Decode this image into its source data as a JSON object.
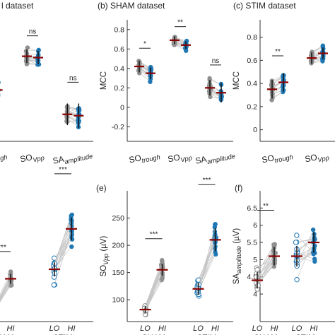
{
  "colors": {
    "gray": "#8f8f8f",
    "blue": "#1f77b4",
    "line": "#c6c6c6",
    "mean": "#8b0000",
    "axis": "#333333"
  },
  "chart_data": [
    {
      "id": "a",
      "type": "scatter",
      "title": "l dataset",
      "ylabel": "",
      "ylim": [
        0,
        0.9
      ],
      "categories": [
        "SO_trough",
        "SO_Vpp",
        "SA_amplitude"
      ],
      "category_labels": [
        {
          "main": "SO",
          "sub": "trough"
        },
        {
          "main": "SO",
          "sub": "Vpp"
        },
        {
          "main": "SA",
          "sub": "amplitude"
        }
      ],
      "significance": [
        "",
        "ns",
        "ns"
      ],
      "series": [
        {
          "values": [
            0.4,
            0.63,
            0.2
          ],
          "spread": [
            0.06,
            0.05,
            0.08
          ]
        },
        {
          "values": [
            0.38,
            0.62,
            0.19
          ],
          "spread": [
            0.07,
            0.05,
            0.09
          ]
        }
      ]
    },
    {
      "id": "b",
      "type": "scatter",
      "panel_label": "(b)",
      "title": "SHAM dataset",
      "ylabel": "MCC",
      "ylim": [
        -0.35,
        0.9
      ],
      "yticks": [
        -0.2,
        0,
        0.2,
        0.4,
        0.6,
        0.8
      ],
      "ytick_labels": [
        "-0.2",
        "0",
        "0.2",
        "0.4",
        "0.6",
        "0.8"
      ],
      "categories": [
        "SO_trough",
        "SO_Vpp",
        "SA_amplitude"
      ],
      "category_labels": [
        {
          "main": "SO",
          "sub": "trough"
        },
        {
          "main": "SO",
          "sub": "Vpp"
        },
        {
          "main": "SA",
          "sub": "amplitude"
        }
      ],
      "significance": [
        "*",
        "**",
        "ns"
      ],
      "series": [
        {
          "values": [
            0.42,
            0.69,
            0.2
          ],
          "spread": [
            0.06,
            0.04,
            0.08
          ]
        },
        {
          "values": [
            0.35,
            0.64,
            0.15
          ],
          "spread": [
            0.06,
            0.04,
            0.1
          ]
        }
      ]
    },
    {
      "id": "c",
      "type": "scatter",
      "panel_label": "(c)",
      "title": "STIM dataset",
      "ylabel": "MCC",
      "ylim": [
        -0.1,
        0.95
      ],
      "yticks": [
        0,
        0.2,
        0.4,
        0.6,
        0.8
      ],
      "ytick_labels": [
        "0",
        "0.2",
        "0.4",
        "0.6",
        "0.8"
      ],
      "categories": [
        "SO_trough",
        "SO_Vpp"
      ],
      "category_labels": [
        {
          "main": "SO",
          "sub": "trough"
        },
        {
          "main": "SO",
          "sub": "Vpp"
        }
      ],
      "significance": [
        "**",
        ""
      ],
      "series": [
        {
          "values": [
            0.35,
            0.62
          ],
          "spread": [
            0.08,
            0.05
          ]
        },
        {
          "values": [
            0.41,
            0.66
          ],
          "spread": [
            0.08,
            0.05
          ]
        }
      ]
    },
    {
      "id": "d",
      "type": "scatter",
      "title": "",
      "ylabel": "",
      "groups": [
        "SHAM",
        "STIM"
      ],
      "categories": [
        "LO",
        "HI"
      ],
      "significance": [
        "***",
        "***"
      ],
      "series": [
        {
          "group": "SHAM",
          "LO": -0.5,
          "HI": 0.8,
          "spread_lo": 0.2,
          "spread_hi": 0.35
        },
        {
          "group": "STIM",
          "LO": 1.2,
          "HI": 2.9,
          "spread_lo": 0.5,
          "spread_hi": 0.8
        }
      ],
      "ylim": [
        -1,
        4.5
      ]
    },
    {
      "id": "e",
      "type": "scatter",
      "panel_label": "(e)",
      "title": "",
      "ylabel": "SO_Vpp (µV)",
      "ylabel_parts": {
        "main": "SO",
        "sub": "Vpp",
        "unit": " (µV)"
      },
      "ylim": [
        60,
        300
      ],
      "yticks": [
        100,
        150,
        200,
        250
      ],
      "ytick_labels": [
        "100",
        "150",
        "200",
        "250"
      ],
      "groups": [
        "SHAM",
        "STIM"
      ],
      "categories": [
        "LO",
        "HI"
      ],
      "significance": [
        "***",
        "***"
      ],
      "series": [
        {
          "group": "SHAM",
          "LO": 82,
          "HI": 155,
          "spread_lo": 10,
          "spread_hi": 18
        },
        {
          "group": "STIM",
          "LO": 120,
          "HI": 210,
          "spread_lo": 18,
          "spread_hi": 35
        }
      ]
    },
    {
      "id": "f",
      "type": "scatter",
      "panel_label": "(f)",
      "title": "",
      "ylabel": "SA_amplitude (µV)",
      "ylabel_parts": {
        "main": "SA",
        "sub": "amplitude",
        "unit": " (µV)"
      },
      "ylim": [
        3.2,
        7.0
      ],
      "yticks": [
        4,
        4.5,
        5,
        5.5,
        6,
        6.5
      ],
      "ytick_labels": [
        "4",
        "4.5",
        "5",
        "5.5",
        "6",
        "6.5"
      ],
      "groups": [
        "SHAM",
        "STIM"
      ],
      "categories": [
        "LO",
        "HI"
      ],
      "significance": [
        "**",
        ""
      ],
      "series": [
        {
          "group": "SHAM",
          "LO": 4.4,
          "HI": 5.1,
          "spread_lo": 0.4,
          "spread_hi": 0.45
        },
        {
          "group": "STIM",
          "LO": 5.1,
          "HI": 5.5,
          "spread_lo": 0.5,
          "spread_hi": 0.5
        }
      ]
    }
  ]
}
